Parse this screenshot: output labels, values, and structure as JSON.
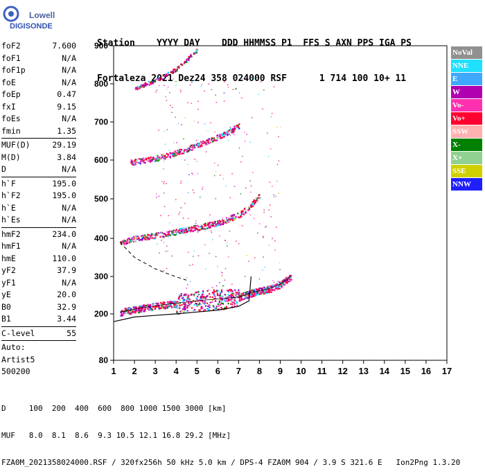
{
  "logo": {
    "line1": "Lowell",
    "line2": "DIGISONDE"
  },
  "header": {
    "line1": "Station    YYYY DAY    DDD HHMMSS P1  FFS S AXN PPS IGA PS",
    "line2": "Fortaleza 2021 Dez24 358 024000 RSF      1 714 100 10+ 11"
  },
  "params": [
    {
      "name": "foF2",
      "value": "7.600"
    },
    {
      "name": "foF1",
      "value": "N/A"
    },
    {
      "name": "foF1p",
      "value": "N/A"
    },
    {
      "name": "foE",
      "value": "N/A"
    },
    {
      "name": "foEp",
      "value": "0.47"
    },
    {
      "name": "fxI",
      "value": "9.15"
    },
    {
      "name": "foEs",
      "value": "N/A"
    },
    {
      "name": "fmin",
      "value": "1.35"
    },
    {
      "sep": true
    },
    {
      "name": "MUF(D)",
      "value": "29.19"
    },
    {
      "name": "M(D)",
      "value": "3.84"
    },
    {
      "name": "D",
      "value": "N/A"
    },
    {
      "sep": true
    },
    {
      "name": "h`F",
      "value": "195.0"
    },
    {
      "name": "h`F2",
      "value": "195.0"
    },
    {
      "name": "h`E",
      "value": "N/A"
    },
    {
      "name": "h`Es",
      "value": "N/A"
    },
    {
      "sep": true
    },
    {
      "name": "hmF2",
      "value": "234.0"
    },
    {
      "name": "hmF1",
      "value": "N/A"
    },
    {
      "name": "hmE",
      "value": "110.0"
    },
    {
      "name": "yF2",
      "value": "37.9"
    },
    {
      "name": "yF1",
      "value": "N/A"
    },
    {
      "name": "yE",
      "value": "20.0"
    },
    {
      "name": "B0",
      "value": "32.9"
    },
    {
      "name": "B1",
      "value": "3.44"
    },
    {
      "sep": true
    },
    {
      "name": "C-level",
      "value": "55"
    },
    {
      "sep": true
    },
    {
      "name": "Auto:",
      "value": ""
    },
    {
      "name": "Artist5",
      "value": ""
    },
    {
      "name": "500200",
      "value": ""
    }
  ],
  "legend": [
    {
      "label": "NoVal",
      "color": "#909090"
    },
    {
      "label": "NNE",
      "color": "#20e0ff"
    },
    {
      "label": "E",
      "color": "#40a8ff"
    },
    {
      "label": "W",
      "color": "#b000b0"
    },
    {
      "label": "Vo-",
      "color": "#ff30b0"
    },
    {
      "label": "Vo+",
      "color": "#ff0030"
    },
    {
      "label": "SSW",
      "color": "#ffb0b0"
    },
    {
      "label": "X-",
      "color": "#008000"
    },
    {
      "label": "X+",
      "color": "#90d090"
    },
    {
      "label": "SSE",
      "color": "#d0d000"
    },
    {
      "label": "NNW",
      "color": "#2020ff"
    }
  ],
  "footer": {
    "line1": "D     100  200  400  600  800 1000 1500 3000 [km]",
    "line2": "MUF   8.0  8.1  8.6  9.3 10.5 12.1 16.8 29.2 [MHz]",
    "line3": "FZA0M_2021358024000.RSF / 320fx256h 50 kHz 5.0 km / DPS-4 FZA0M 904 / 3.9 S 321.6 E   Ion2Png 1.3.20"
  },
  "chart_data": {
    "type": "scatter",
    "xlim": [
      1,
      17
    ],
    "ylim": [
      80,
      900
    ],
    "x_ticks": [
      "1",
      "2",
      "3",
      "4",
      "5",
      "6",
      "7",
      "8",
      "9",
      "10",
      "11",
      "12",
      "13",
      "14",
      "15",
      "16",
      "17"
    ],
    "y_ticks": [
      "80",
      "200",
      "300",
      "400",
      "500",
      "600",
      "700",
      "800",
      "900"
    ],
    "y_tick_values": [
      80,
      200,
      300,
      400,
      500,
      600,
      700,
      800,
      900
    ],
    "grid": false,
    "traces": [
      {
        "name": "O-trace (1 hop)",
        "x": [
          1.3,
          2,
          3,
          4,
          5,
          6,
          7,
          7.5,
          8,
          8.5,
          9,
          9.5
        ],
        "y": [
          205,
          213,
          222,
          228,
          235,
          240,
          245,
          255,
          262,
          268,
          280,
          300
        ]
      },
      {
        "name": "O-trace (2 hop)",
        "x": [
          1.3,
          2,
          3,
          4,
          5,
          6,
          7,
          7.5,
          8
        ],
        "y": [
          390,
          400,
          408,
          418,
          428,
          440,
          460,
          480,
          510
        ]
      },
      {
        "name": "O-trace (3 hop)",
        "x": [
          1.8,
          3,
          4,
          5,
          6,
          7
        ],
        "y": [
          595,
          605,
          620,
          640,
          662,
          690
        ]
      },
      {
        "name": "O-trace (4 hop)",
        "x": [
          2,
          3,
          4,
          5
        ],
        "y": [
          790,
          810,
          840,
          890
        ]
      }
    ],
    "profile": {
      "x": [
        1,
        2,
        3,
        4,
        5,
        6,
        7,
        7.5,
        7.6
      ],
      "y": [
        180,
        192,
        196,
        200,
        205,
        210,
        220,
        235,
        300
      ]
    },
    "dashed_curve": {
      "x": [
        1.3,
        2,
        3,
        3.8,
        4.5
      ],
      "y": [
        390,
        350,
        320,
        303,
        290
      ]
    }
  }
}
